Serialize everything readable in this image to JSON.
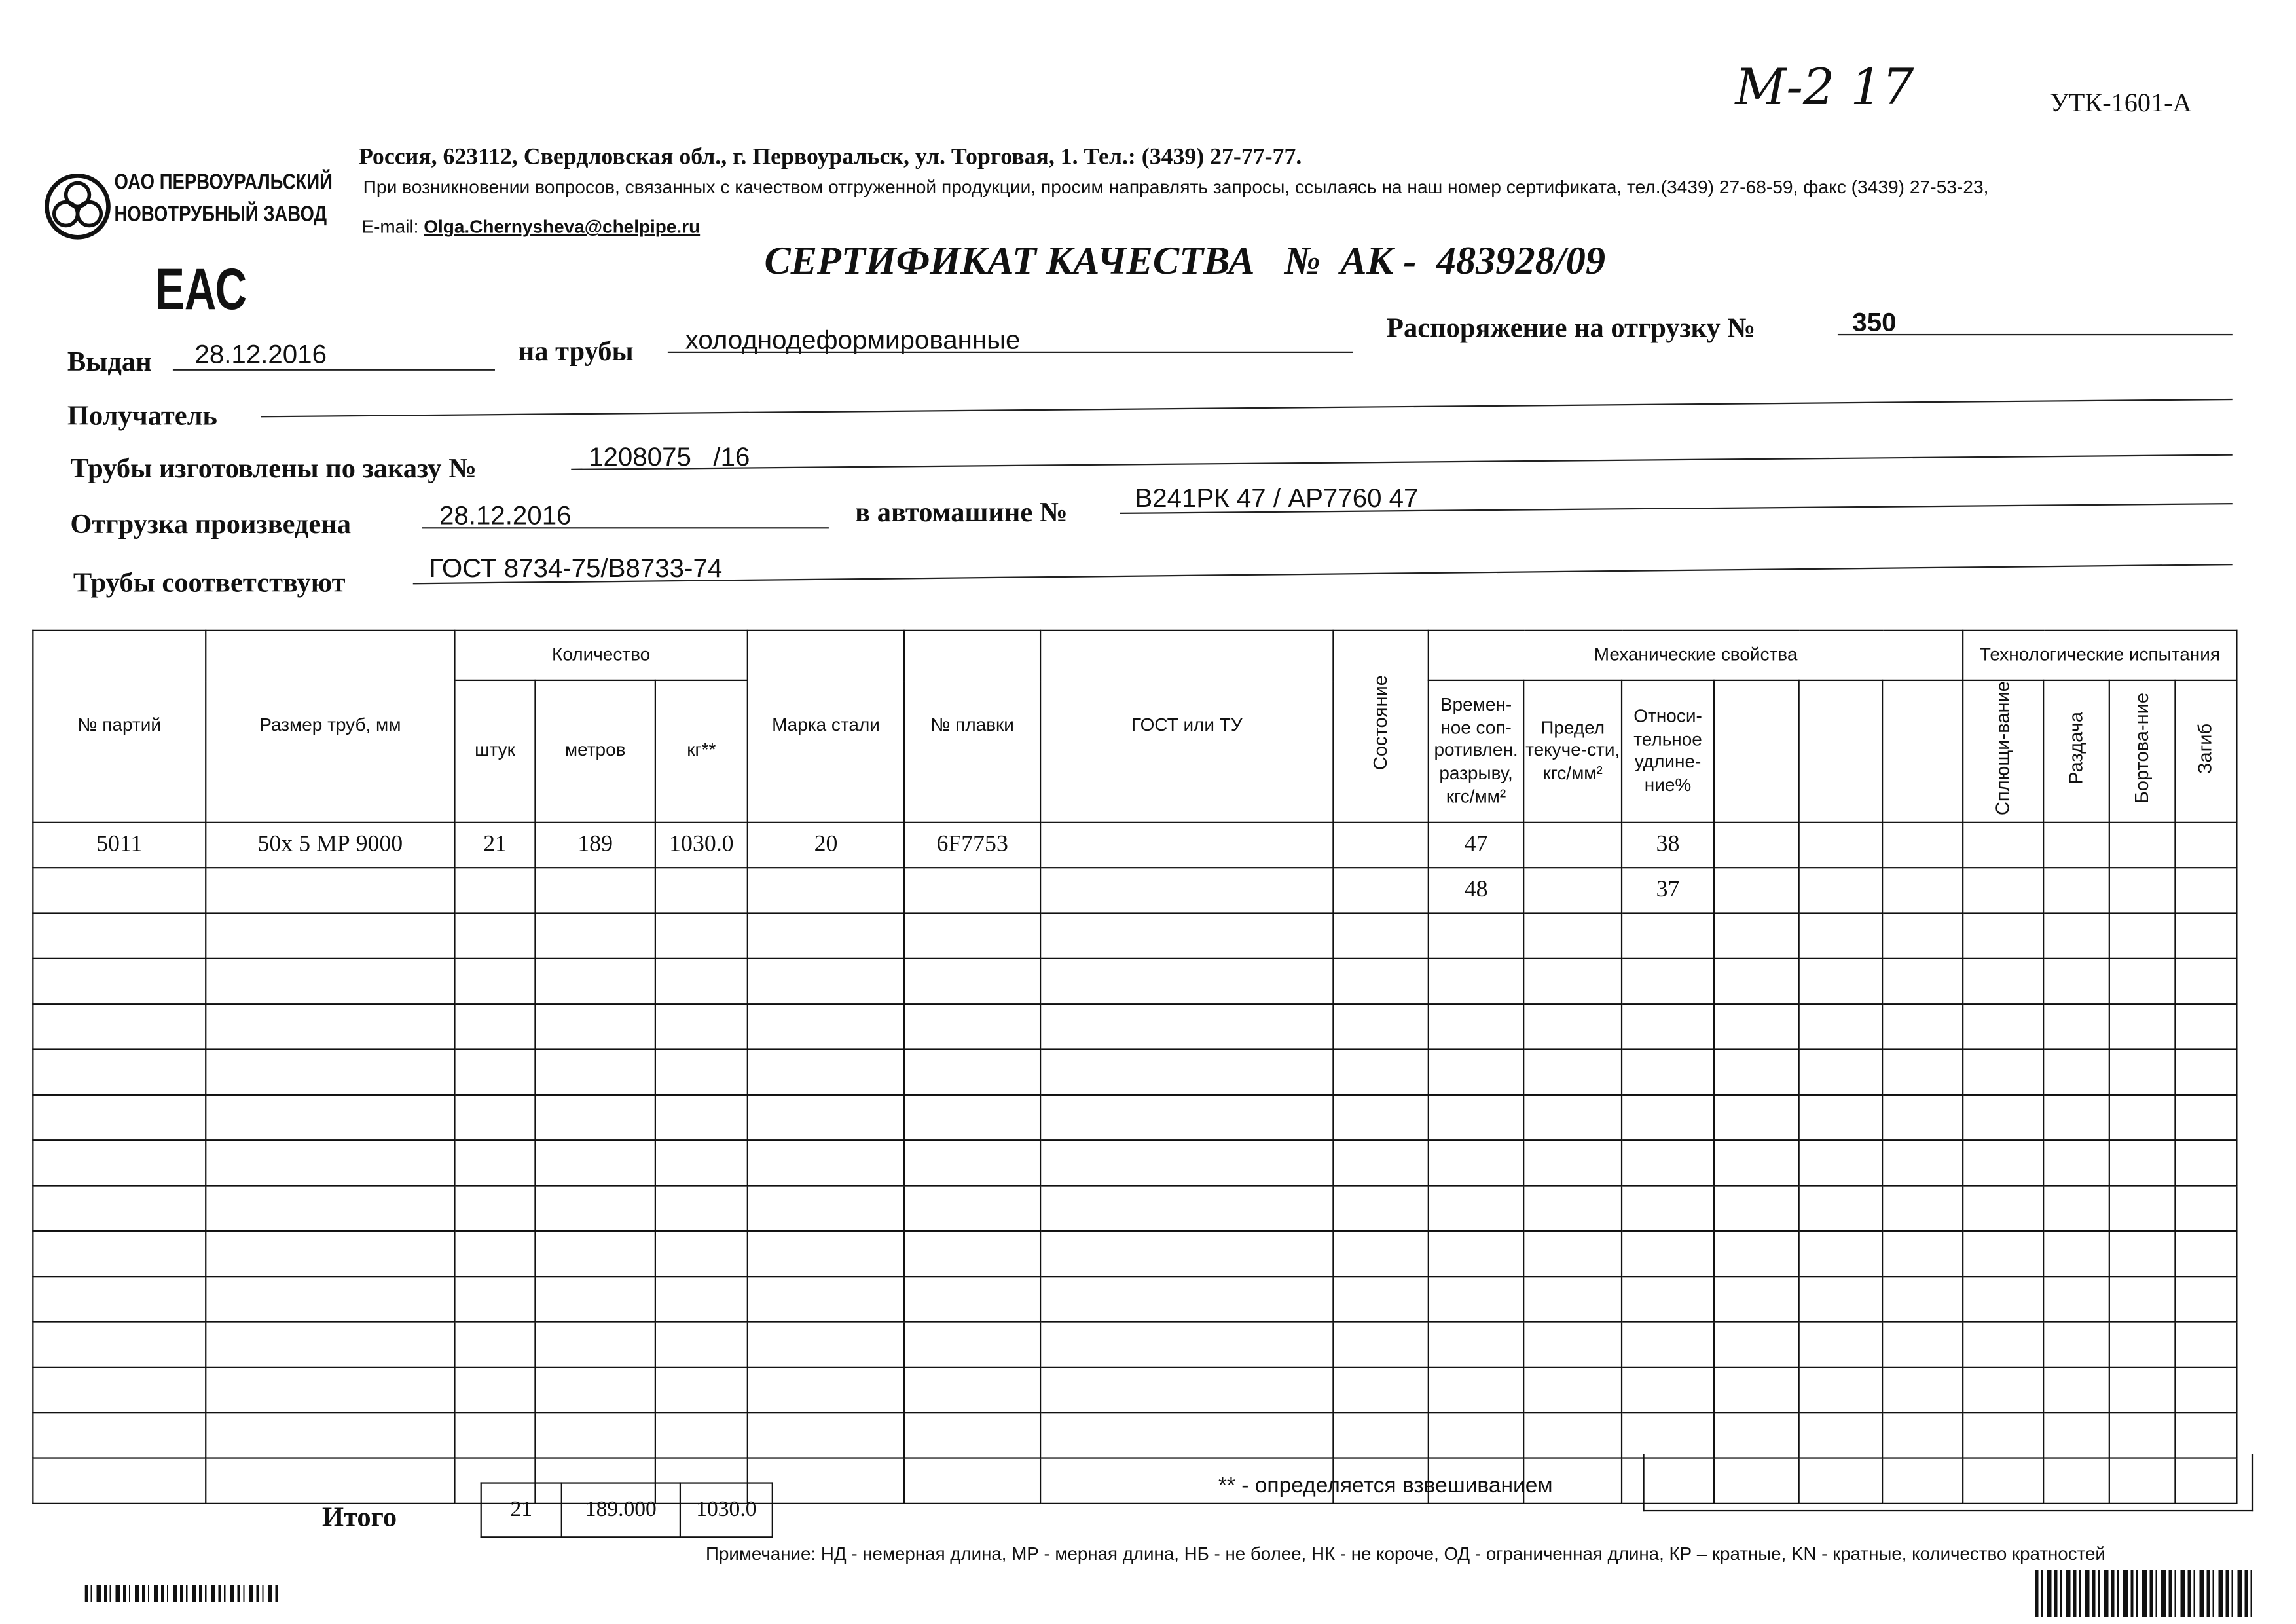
{
  "form_code": "УТК-1601-А",
  "handwritten_note": "М-2 17",
  "company": {
    "logo_line1": "ОАО ПЕРВОУРАЛЬСКИЙ",
    "logo_line2": "НОВОТРУБНЫЙ ЗАВОД",
    "address": "Россия, 623112, Свердловская обл., г. Первоуральск, ул. Торговая, 1. Тел.: (3439) 27-77-77.",
    "contact_note": "При возникновении вопросов, связанных с качеством отгруженной продукции, просим направлять запросы, ссылаясь на наш номер сертификата, тел.(3439) 27-68-59, факс (3439) 27-53-23,",
    "email_label": "E-mail:",
    "email": "Olga.Chernysheva@chelpipe.ru"
  },
  "eac_mark": "ЕАС",
  "title": "СЕРТИФИКАТ КАЧЕСТВА   №  АК -  483928/09",
  "fields": {
    "issued_label": "Выдан",
    "issued": "28.12.2016",
    "pipes_label": "на трубы",
    "pipes": "холоднодеформированные",
    "order_label": "Распоряжение на отгрузку №",
    "order": "350",
    "recipient_label": "Получатель",
    "recipient": "",
    "made_label": "Трубы изготовлены по заказу №",
    "made": "1208075   /16",
    "shipped_label": "Отгрузка произведена",
    "shipped": "28.12.2016",
    "vehicle_label": "в автомашине №",
    "vehicle": "В241РК 47 / АР7760 47",
    "conform_label": "Трубы соответствуют",
    "conform": "ГОСТ 8734-75/В8733-74"
  },
  "table": {
    "headers": {
      "batch": "№ партий",
      "size": "Размер труб, мм",
      "qty": "Количество",
      "pcs": "штук",
      "meters": "метров",
      "kg": "кг**",
      "steel": "Марка стали",
      "heat": "№ плавки",
      "gost": "ГОСТ или ТУ",
      "state": "Состояние",
      "mech": "Механические свойства",
      "tensile": "Времен-ное соп-ротивлен. разрыву, кгс/мм²",
      "yield": "Предел текуче-сти, кгс/мм²",
      "elong": "Относи-тельное удлине-ние%",
      "tech": "Технологические испытания",
      "flatten": "Сплющи-вание",
      "expand": "Раздача",
      "flange": "Бортова-ние",
      "bend": "Загиб"
    },
    "rows": [
      {
        "batch": "5011",
        "size": "50х 5 МР 9000",
        "pcs": "21",
        "meters": "189",
        "kg": "1030.0",
        "steel": "20",
        "heat": "6F7753",
        "tensile": "47",
        "elong": "38"
      },
      {
        "tensile": "48",
        "elong": "37"
      }
    ],
    "total_label": "Итого",
    "total": {
      "pcs": "21",
      "meters": "189.000",
      "kg": "1030.0"
    }
  },
  "footnote": "** - определяется взвешиванием",
  "note": "Примечание: НД - немерная длина, МР - мерная длина, НБ - не более, НК - не короче, ОД - ограниченная длина, КР – кратные, KN - кратные, количество кратностей"
}
